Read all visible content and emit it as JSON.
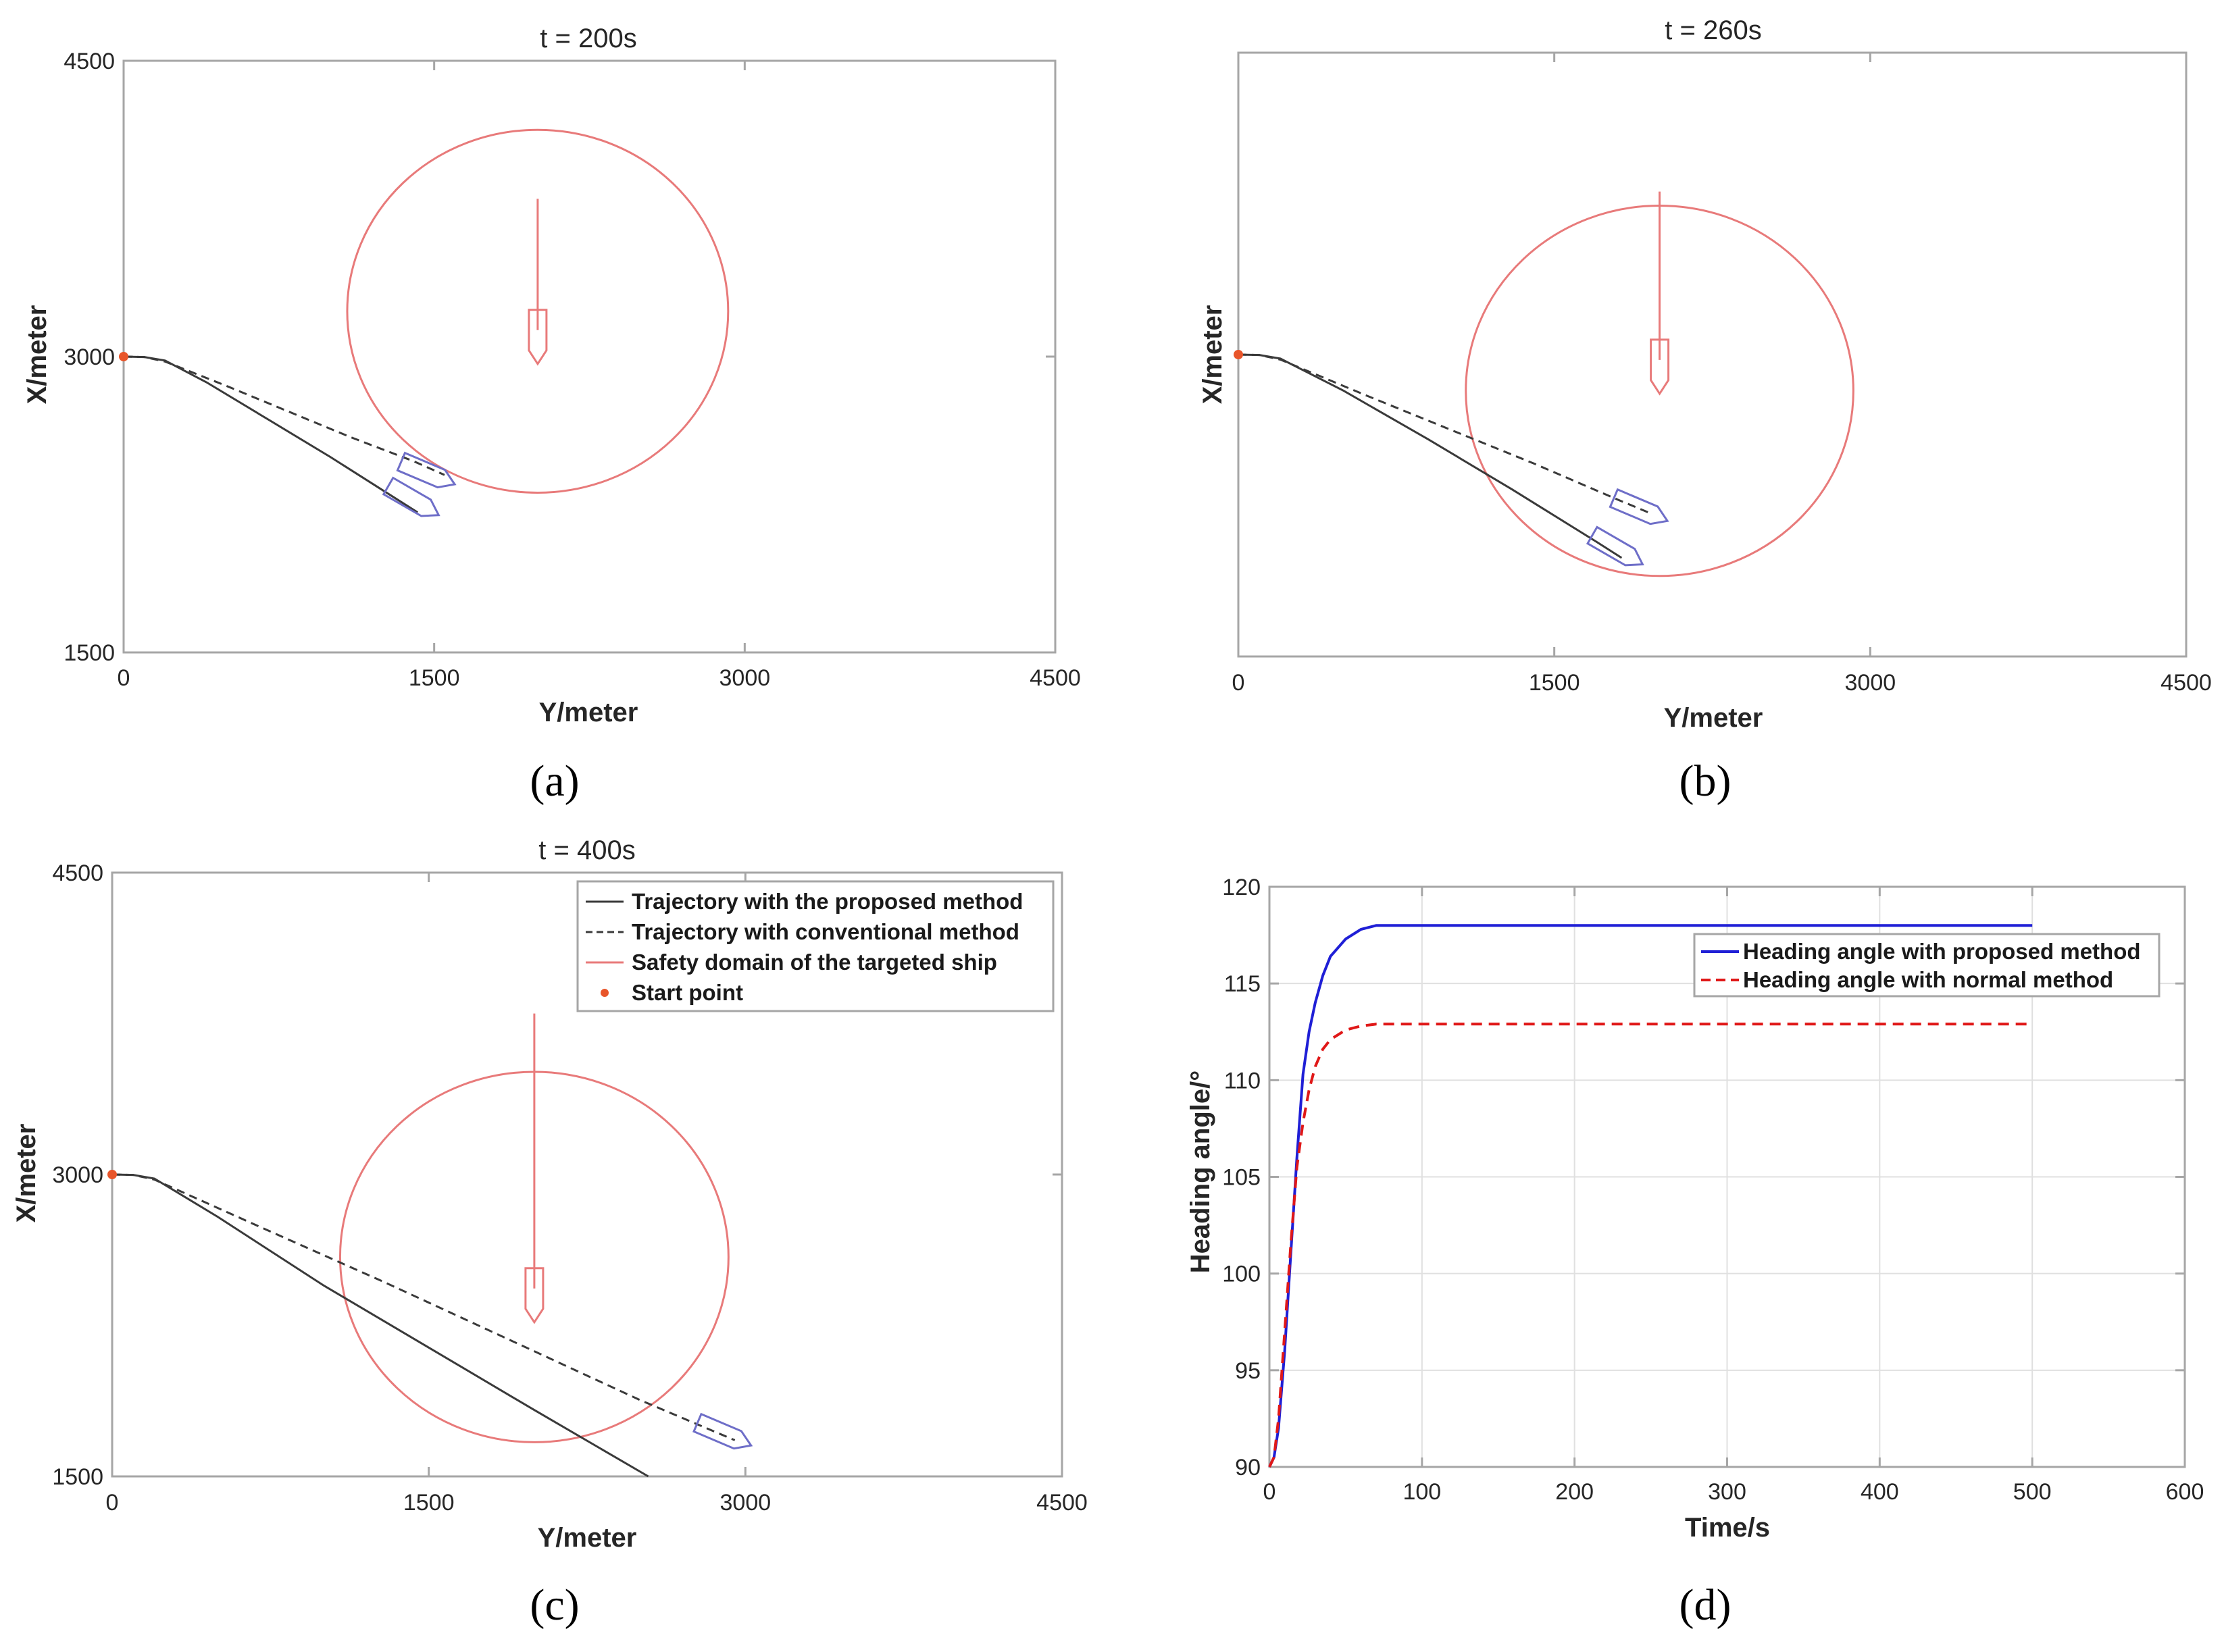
{
  "colors": {
    "axis": "#a6a6a6",
    "grid": "#e0e0e0",
    "text": "#262626",
    "proposed_traj": "#3a3a3a",
    "conventional_traj": "#3a3a3a",
    "safety_domain": "#e87a7a",
    "target_ship": "#e87a7a",
    "own_ship": "#6e6ec8",
    "start_point": "#e8552a",
    "heading_proposed": "#1f1fd6",
    "heading_normal": "#e01818"
  },
  "chart_data": [
    {
      "id": "a",
      "type": "line",
      "caption": "(a)",
      "title": "t = 200s",
      "xlabel": "Y/meter",
      "ylabel": "X/meter",
      "xlim": [
        0,
        4500
      ],
      "ylim": [
        1500,
        4500
      ],
      "xticks": [
        "0",
        "1500",
        "3000",
        "4500"
      ],
      "yticks": [
        "1500",
        "3000",
        "4500"
      ],
      "series": [
        {
          "name": "Trajectory with the proposed method",
          "style": "solid",
          "points": [
            [
              0,
              3000
            ],
            [
              100,
              2998
            ],
            [
              200,
              2980
            ],
            [
              400,
              2870
            ],
            [
              700,
              2680
            ],
            [
              1000,
              2490
            ],
            [
              1300,
              2290
            ],
            [
              1420,
              2210
            ]
          ]
        },
        {
          "name": "Trajectory with conventional method",
          "style": "dashed",
          "points": [
            [
              0,
              3000
            ],
            [
              100,
              2998
            ],
            [
              200,
              2975
            ],
            [
              500,
              2850
            ],
            [
              800,
              2720
            ],
            [
              1100,
              2590
            ],
            [
              1400,
              2470
            ],
            [
              1550,
              2400
            ]
          ]
        }
      ],
      "safety_domain": {
        "center": [
          2000,
          3230
        ],
        "radius": 920
      },
      "target_ship": {
        "position": [
          2000,
          3100
        ],
        "wake_start": [
          2000,
          3800
        ]
      },
      "own_ships": [
        {
          "position": [
            1400,
            2270
          ],
          "heading": 120
        },
        {
          "position": [
            1470,
            2410
          ],
          "heading": 113
        }
      ],
      "start_point": [
        0,
        3000
      ]
    },
    {
      "id": "b",
      "type": "line",
      "caption": "(b)",
      "title": "t = 260s",
      "xlabel": "Y/meter",
      "ylabel": "X/meter",
      "xlim": [
        0,
        4500
      ],
      "ylim": [
        1500,
        4500
      ],
      "xticks": [
        "0",
        "1500",
        "3000",
        "4500"
      ],
      "yticks": [],
      "series": [
        {
          "name": "Trajectory with the proposed method",
          "style": "solid",
          "points": [
            [
              0,
              3000
            ],
            [
              100,
              2998
            ],
            [
              200,
              2980
            ],
            [
              500,
              2820
            ],
            [
              900,
              2580
            ],
            [
              1300,
              2330
            ],
            [
              1700,
              2070
            ],
            [
              1820,
              1990
            ]
          ]
        },
        {
          "name": "Trajectory with conventional method",
          "style": "dashed",
          "points": [
            [
              0,
              3000
            ],
            [
              100,
              2998
            ],
            [
              200,
              2975
            ],
            [
              600,
              2800
            ],
            [
              1000,
              2630
            ],
            [
              1400,
              2460
            ],
            [
              1800,
              2280
            ],
            [
              1960,
              2210
            ]
          ]
        }
      ],
      "safety_domain": {
        "center": [
          2000,
          2820
        ],
        "radius": 920
      },
      "target_ship": {
        "position": [
          2000,
          2940
        ],
        "wake_start": [
          2000,
          3810
        ]
      },
      "own_ships": [
        {
          "position": [
            1800,
            2030
          ],
          "heading": 120
        },
        {
          "position": [
            1910,
            2230
          ],
          "heading": 113
        }
      ],
      "start_point": [
        0,
        3000
      ]
    },
    {
      "id": "c",
      "type": "line",
      "caption": "(c)",
      "title": "t = 400s",
      "xlabel": "Y/meter",
      "ylabel": "X/meter",
      "xlim": [
        0,
        4500
      ],
      "ylim": [
        1500,
        4500
      ],
      "xticks": [
        "0",
        "1500",
        "3000",
        "4500"
      ],
      "yticks": [
        "1500",
        "3000",
        "4500"
      ],
      "legend": {
        "placement": "top-right",
        "entries": [
          "Trajectory with the proposed method",
          "Trajectory with conventional method",
          "Safety domain of the targeted ship",
          "Start point"
        ]
      },
      "series": [
        {
          "name": "Trajectory with the proposed method",
          "style": "solid",
          "points": [
            [
              0,
              3000
            ],
            [
              100,
              2998
            ],
            [
              200,
              2980
            ],
            [
              500,
              2790
            ],
            [
              1000,
              2450
            ],
            [
              1500,
              2140
            ],
            [
              2000,
              1830
            ],
            [
              2540,
              1500
            ]
          ]
        },
        {
          "name": "Trajectory with conventional method",
          "style": "dashed",
          "points": [
            [
              0,
              3000
            ],
            [
              100,
              2998
            ],
            [
              200,
              2975
            ],
            [
              700,
              2740
            ],
            [
              1300,
              2460
            ],
            [
              1900,
              2170
            ],
            [
              2500,
              1880
            ],
            [
              2950,
              1680
            ]
          ]
        }
      ],
      "safety_domain": {
        "center": [
          2000,
          2590
        ],
        "radius": 920
      },
      "target_ship": {
        "position": [
          2000,
          2400
        ],
        "wake_start": [
          2000,
          3800
        ]
      },
      "own_ships": [
        {
          "position": [
            2900,
            1710
          ],
          "heading": 113
        }
      ],
      "start_point": [
        0,
        3000
      ]
    },
    {
      "id": "d",
      "type": "line",
      "caption": "(d)",
      "title": "",
      "xlabel": "Time/s",
      "ylabel": "Heading angle/°",
      "xlim": [
        0,
        600
      ],
      "ylim": [
        90,
        120
      ],
      "xticks": [
        "0",
        "100",
        "200",
        "300",
        "400",
        "500",
        "600"
      ],
      "yticks": [
        "90",
        "95",
        "100",
        "105",
        "110",
        "115",
        "120"
      ],
      "grid": true,
      "legend": {
        "placement": "top-right",
        "entries": [
          "Heading angle with proposed method",
          "Heading angle with normal method"
        ]
      },
      "series": [
        {
          "name": "Heading angle with proposed method",
          "style": "solid",
          "x": [
            0,
            3,
            6,
            10,
            14,
            18,
            22,
            26,
            30,
            35,
            40,
            50,
            60,
            70,
            80,
            100,
            150,
            200,
            300,
            400,
            500
          ],
          "y": [
            90,
            90.5,
            92,
            96,
            101,
            106,
            110.3,
            112.5,
            114,
            115.4,
            116.4,
            117.3,
            117.8,
            118,
            118,
            118,
            118,
            118,
            118,
            118,
            118
          ]
        },
        {
          "name": "Heading angle with normal method",
          "style": "dashed",
          "x": [
            0,
            3,
            6,
            10,
            14,
            18,
            22,
            26,
            30,
            35,
            40,
            50,
            60,
            70,
            80,
            100,
            150,
            200,
            300,
            400,
            500
          ],
          "y": [
            90,
            90.5,
            92.5,
            97,
            101.5,
            105.5,
            107.8,
            109.5,
            110.7,
            111.6,
            112.1,
            112.6,
            112.8,
            112.9,
            112.9,
            112.9,
            112.9,
            112.9,
            112.9,
            112.9,
            112.9
          ]
        }
      ]
    }
  ]
}
